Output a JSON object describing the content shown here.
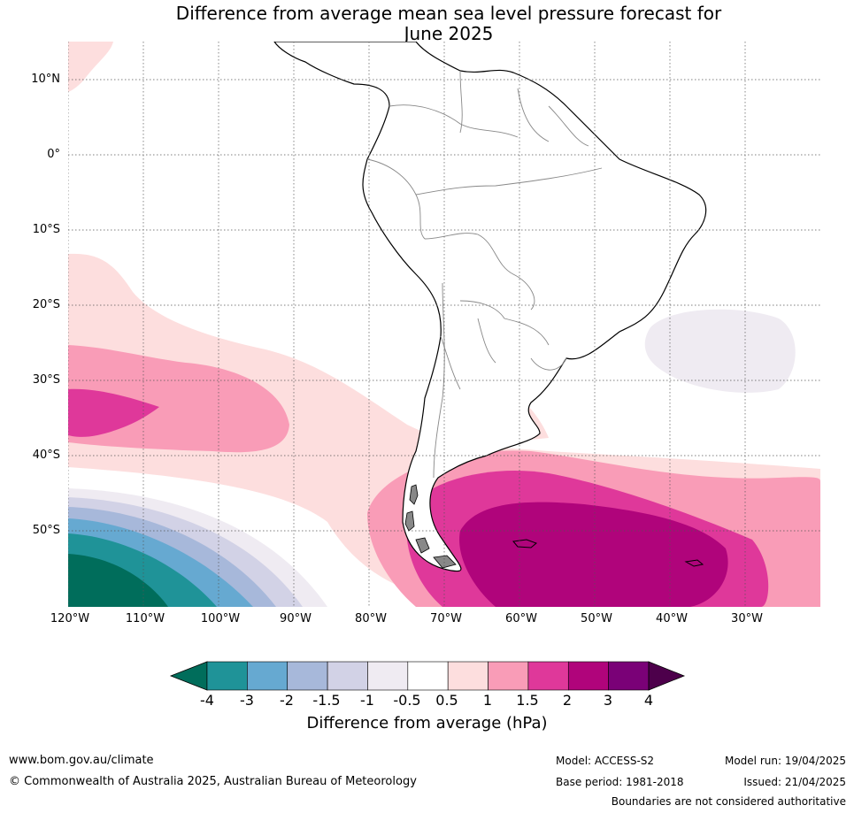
{
  "title_line1": "Difference from average mean sea level pressure forecast for",
  "title_line2": "June 2025",
  "map": {
    "latitude_labels": [
      "10°N",
      "0°",
      "10°S",
      "20°S",
      "30°S",
      "40°S",
      "50°S"
    ],
    "longitude_labels": [
      "120°W",
      "110°W",
      "100°W",
      "90°W",
      "80°W",
      "70°W",
      "60°W",
      "50°W",
      "40°W",
      "30°W"
    ],
    "gridlines": "dotted"
  },
  "colorbar": {
    "ticks": [
      "-4",
      "-3",
      "-2",
      "-1.5",
      "-1",
      "-0.5",
      "0.5",
      "1",
      "1.5",
      "2",
      "3",
      "4"
    ],
    "colors": [
      "#1f9398",
      "#66a9d1",
      "#a7b8da",
      "#d2d2e6",
      "#efebf2",
      "#ffffff",
      "#fddede",
      "#f99cb7",
      "#df389a",
      "#b0047b",
      "#7a0177"
    ],
    "under_color": "#006d5b",
    "over_color": "#4d004b",
    "label": "Difference from average (hPa)"
  },
  "footer": {
    "website": "www.bom.gov.au/climate",
    "copyright": "© Commonwealth of Australia 2025, Australian Bureau of Meteorology",
    "model": "Model: ACCESS-S2",
    "base_period": "Base period: 1981-2018",
    "model_run": "Model run: 19/04/2025",
    "issued": "Issued: 21/04/2025",
    "disclaimer": "Boundaries are not considered authoritative"
  }
}
